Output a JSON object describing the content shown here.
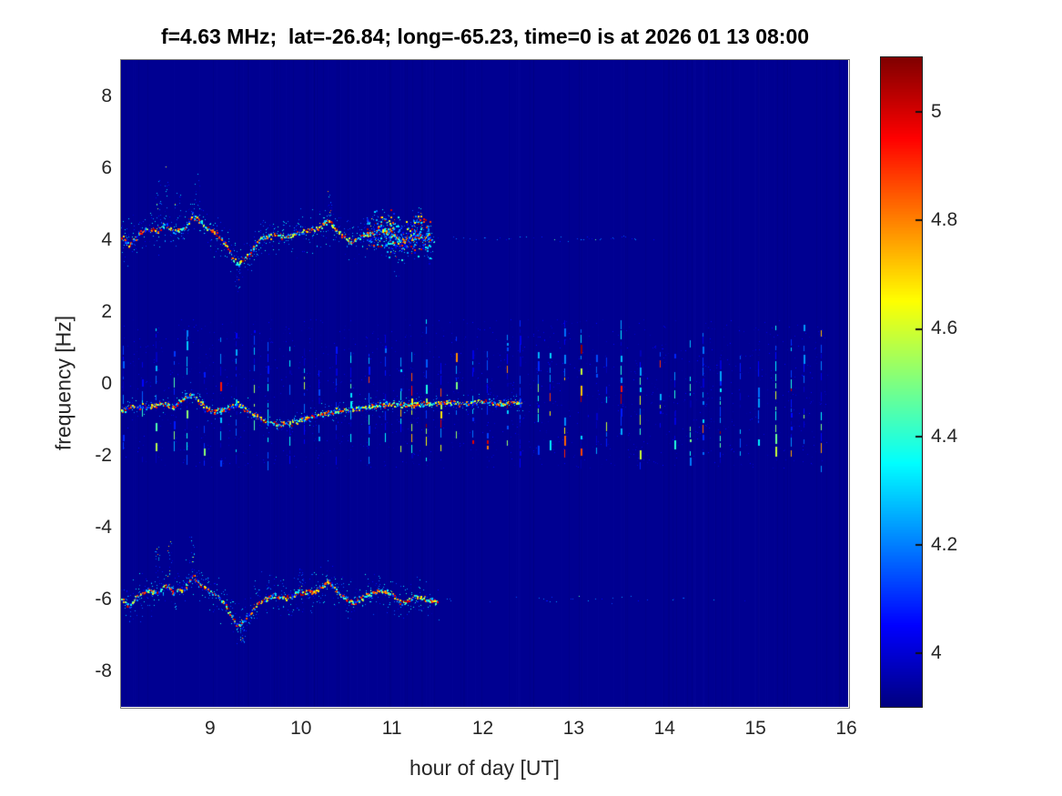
{
  "chart_data": {
    "type": "heatmap",
    "title": "f=4.63 MHz;  lat=-26.84; long=-65.23, time=0 is at 2026 01 13 08:00",
    "xlabel": "hour of day [UT]",
    "ylabel": "frequency [Hz]",
    "x_range": [
      8.02,
      16.02
    ],
    "y_range": [
      -9,
      9
    ],
    "x_ticks": [
      9,
      10,
      11,
      12,
      13,
      14,
      15,
      16
    ],
    "y_ticks": [
      8,
      6,
      4,
      2,
      0,
      -2,
      -4,
      -6,
      -8
    ],
    "grid": false,
    "colormap": "jet",
    "background_value": 3.92,
    "colorbar": {
      "position": "right",
      "range": [
        3.9,
        5.1
      ],
      "ticks": [
        5,
        4.8,
        4.6,
        4.4,
        4.2,
        4
      ]
    },
    "signals": {
      "upper_sideband_trace": {
        "name": "upper Doppler sideband near +4 Hz",
        "trace_points": [
          [
            8.02,
            4.1
          ],
          [
            8.1,
            3.85
          ],
          [
            8.2,
            4.15
          ],
          [
            8.3,
            4.3
          ],
          [
            8.42,
            4.25
          ],
          [
            8.5,
            4.45
          ],
          [
            8.6,
            4.25
          ],
          [
            8.72,
            4.35
          ],
          [
            8.8,
            4.7
          ],
          [
            8.88,
            4.5
          ],
          [
            8.95,
            4.35
          ],
          [
            9.05,
            4.2
          ],
          [
            9.15,
            3.95
          ],
          [
            9.3,
            3.3
          ],
          [
            9.42,
            3.6
          ],
          [
            9.55,
            4.05
          ],
          [
            9.7,
            4.15
          ],
          [
            9.85,
            4.1
          ],
          [
            10.0,
            4.25
          ],
          [
            10.15,
            4.3
          ],
          [
            10.3,
            4.55
          ],
          [
            10.42,
            4.2
          ],
          [
            10.55,
            3.95
          ],
          [
            10.7,
            4.15
          ],
          [
            10.85,
            4.3
          ],
          [
            11.0,
            4.2
          ],
          [
            11.1,
            3.95
          ],
          [
            11.25,
            4.15
          ],
          [
            11.45,
            4.0
          ]
        ],
        "dense_range": [
          8.02,
          11.45
        ],
        "sparse_range": [
          11.45,
          13.9
        ],
        "faint_range": [
          13.9,
          14.7
        ],
        "burst_range": [
          10.72,
          11.42
        ],
        "plumes": [
          [
            8.42,
            1.3
          ],
          [
            8.52,
            1.6
          ],
          [
            8.64,
            1.0
          ],
          [
            8.86,
            1.2
          ],
          [
            9.3,
            -0.7
          ],
          [
            10.32,
            0.8
          ],
          [
            11.05,
            -1.0
          ],
          [
            11.3,
            0.7
          ]
        ]
      },
      "center_trace": {
        "name": "central Doppler trace near -0.7 Hz",
        "trace_points": [
          [
            8.02,
            -0.75
          ],
          [
            8.15,
            -0.6
          ],
          [
            8.3,
            -0.65
          ],
          [
            8.45,
            -0.55
          ],
          [
            8.6,
            -0.65
          ],
          [
            8.72,
            -0.35
          ],
          [
            8.8,
            -0.3
          ],
          [
            8.9,
            -0.55
          ],
          [
            9.0,
            -0.75
          ],
          [
            9.15,
            -0.7
          ],
          [
            9.3,
            -0.55
          ],
          [
            9.45,
            -0.8
          ],
          [
            9.6,
            -1.05
          ],
          [
            9.75,
            -1.15
          ],
          [
            9.9,
            -1.05
          ],
          [
            10.05,
            -0.95
          ],
          [
            10.2,
            -0.85
          ],
          [
            10.4,
            -0.75
          ],
          [
            10.6,
            -0.7
          ],
          [
            10.8,
            -0.6
          ],
          [
            11.0,
            -0.55
          ],
          [
            11.2,
            -0.6
          ],
          [
            11.4,
            -0.55
          ],
          [
            11.6,
            -0.5
          ],
          [
            11.8,
            -0.55
          ],
          [
            12.0,
            -0.5
          ],
          [
            12.2,
            -0.55
          ],
          [
            12.4,
            -0.5
          ]
        ],
        "dense_range": [
          8.02,
          12.42
        ],
        "plumes": []
      },
      "lower_sideband_trace": {
        "name": "lower Doppler sideband near -6 Hz",
        "offset_from_upper": -10.05,
        "dense_range": [
          8.02,
          11.5
        ],
        "sparse_range": [
          11.5,
          14.3
        ],
        "faint_range": [
          14.3,
          15.6
        ],
        "plumes": [
          [
            8.42,
            1.2
          ],
          [
            8.55,
            1.4
          ],
          [
            8.8,
            1.0
          ],
          [
            9.35,
            -0.5
          ],
          [
            10.0,
            0.6
          ]
        ]
      },
      "pulse_streaks": {
        "name": "periodic vertical pulse streaks",
        "start_hour": 8.05,
        "end_hour": 15.8,
        "interval_hours": 0.167,
        "freq_extent": [
          -2.35,
          1.8
        ]
      }
    }
  },
  "colors": {
    "figure_background": "#ffffff",
    "plot_background": "#00028f",
    "tick_text": "#262626",
    "title_text": "#000000"
  }
}
